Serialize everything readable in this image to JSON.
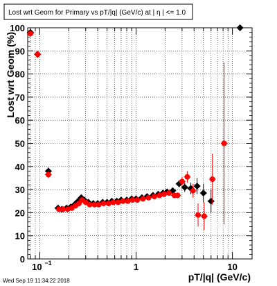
{
  "timestamp": "Wed Sep 19 11:34:22 2018",
  "chart_data": {
    "type": "scatter",
    "title": "Lost wrt Geom for Primary vs pT/|q| (GeV/c) at |   η | <= 1.0",
    "xlabel": "pT/|q| (GeV/c)",
    "ylabel": "Lost wrt Geom (%)",
    "xscale": "log",
    "xlim": [
      0.075,
      16
    ],
    "ylim": [
      0,
      100
    ],
    "grid": true,
    "x_ticks": [
      {
        "value": 0.1,
        "base": "10",
        "exp": "−1"
      },
      {
        "value": 1,
        "base": "1",
        "exp": ""
      },
      {
        "value": 10,
        "base": "10",
        "exp": ""
      }
    ],
    "y_ticks": [
      0,
      10,
      20,
      30,
      40,
      50,
      60,
      70,
      80,
      90,
      100
    ],
    "series": [
      {
        "color": "#000000",
        "marker": "diamond",
        "points": [
          {
            "x": 0.08,
            "y": 98,
            "ex": 0.002,
            "ey": 1
          },
          {
            "x": 0.095,
            "y": 88.5,
            "ex": 0.003,
            "ey": 1.5
          },
          {
            "x": 0.123,
            "y": 38,
            "ex": 0.004,
            "ey": 1.5
          },
          {
            "x": 0.155,
            "y": 22,
            "ex": 0.003,
            "ey": 0.6
          },
          {
            "x": 0.17,
            "y": 21.5,
            "ex": 0.003,
            "ey": 0.6
          },
          {
            "x": 0.19,
            "y": 22,
            "ex": 0.003,
            "ey": 0.6
          },
          {
            "x": 0.21,
            "y": 22.5,
            "ex": 0.003,
            "ey": 0.6
          },
          {
            "x": 0.23,
            "y": 23.5,
            "ex": 0.003,
            "ey": 0.6
          },
          {
            "x": 0.25,
            "y": 25,
            "ex": 0.003,
            "ey": 0.6
          },
          {
            "x": 0.27,
            "y": 26.5,
            "ex": 0.003,
            "ey": 0.6
          },
          {
            "x": 0.29,
            "y": 25.5,
            "ex": 0.003,
            "ey": 0.6
          },
          {
            "x": 0.32,
            "y": 24.5,
            "ex": 0.003,
            "ey": 0.6
          },
          {
            "x": 0.36,
            "y": 24,
            "ex": 0.003,
            "ey": 0.6
          },
          {
            "x": 0.4,
            "y": 24,
            "ex": 0.003,
            "ey": 0.6
          },
          {
            "x": 0.45,
            "y": 24.5,
            "ex": 0.003,
            "ey": 0.6
          },
          {
            "x": 0.5,
            "y": 24.5,
            "ex": 0.003,
            "ey": 0.6
          },
          {
            "x": 0.56,
            "y": 25,
            "ex": 0.003,
            "ey": 0.6
          },
          {
            "x": 0.63,
            "y": 25,
            "ex": 0.003,
            "ey": 0.6
          },
          {
            "x": 0.7,
            "y": 25.5,
            "ex": 0.003,
            "ey": 0.6
          },
          {
            "x": 0.8,
            "y": 25.5,
            "ex": 0.003,
            "ey": 0.6
          },
          {
            "x": 0.9,
            "y": 26,
            "ex": 0.003,
            "ey": 0.6
          },
          {
            "x": 1.0,
            "y": 26,
            "ex": 0.003,
            "ey": 0.6
          },
          {
            "x": 1.15,
            "y": 26.5,
            "ex": 0.003,
            "ey": 0.6
          },
          {
            "x": 1.3,
            "y": 27,
            "ex": 0.003,
            "ey": 0.6
          },
          {
            "x": 1.5,
            "y": 27.5,
            "ex": 0.003,
            "ey": 0.6
          },
          {
            "x": 1.7,
            "y": 28,
            "ex": 0.003,
            "ey": 0.7
          },
          {
            "x": 1.9,
            "y": 28.5,
            "ex": 0.003,
            "ey": 0.7
          },
          {
            "x": 2.1,
            "y": 29,
            "ex": 0.003,
            "ey": 0.8
          },
          {
            "x": 2.4,
            "y": 29.5,
            "ex": 0.003,
            "ey": 1.0
          },
          {
            "x": 2.8,
            "y": 32.5,
            "ex": 0.003,
            "ey": 1.5
          },
          {
            "x": 3.2,
            "y": 31,
            "ex": 0.003,
            "ey": 2.0
          },
          {
            "x": 3.7,
            "y": 30.5,
            "ex": 0.003,
            "ey": 2.5
          },
          {
            "x": 4.3,
            "y": 31.5,
            "ex": 0.003,
            "ey": 3.5
          },
          {
            "x": 5.0,
            "y": 28.5,
            "ex": 0.003,
            "ey": 4.0
          },
          {
            "x": 6.0,
            "y": 25,
            "ex": 0.003,
            "ey": 5.0
          },
          {
            "x": 12,
            "y": 100,
            "ex": 0.003,
            "ey": 0.5
          }
        ]
      },
      {
        "color": "#ff0000",
        "marker": "circle",
        "points": [
          {
            "x": 0.08,
            "y": 97.5,
            "ex": 0.002,
            "ey": 1
          },
          {
            "x": 0.095,
            "y": 88.5,
            "ex": 0.003,
            "ey": 1.5
          },
          {
            "x": 0.123,
            "y": 36.5,
            "ex": 0.004,
            "ey": 1.5
          },
          {
            "x": 0.158,
            "y": 21.5,
            "ex": 0.003,
            "ey": 0.6
          },
          {
            "x": 0.175,
            "y": 21.5,
            "ex": 0.003,
            "ey": 0.6
          },
          {
            "x": 0.195,
            "y": 21.5,
            "ex": 0.003,
            "ey": 0.6
          },
          {
            "x": 0.215,
            "y": 22,
            "ex": 0.003,
            "ey": 0.6
          },
          {
            "x": 0.235,
            "y": 23,
            "ex": 0.003,
            "ey": 0.6
          },
          {
            "x": 0.255,
            "y": 24,
            "ex": 0.003,
            "ey": 0.6
          },
          {
            "x": 0.275,
            "y": 25.5,
            "ex": 0.003,
            "ey": 0.6
          },
          {
            "x": 0.3,
            "y": 24.5,
            "ex": 0.003,
            "ey": 0.6
          },
          {
            "x": 0.33,
            "y": 23.5,
            "ex": 0.003,
            "ey": 0.6
          },
          {
            "x": 0.37,
            "y": 23.5,
            "ex": 0.003,
            "ey": 0.6
          },
          {
            "x": 0.41,
            "y": 23.5,
            "ex": 0.003,
            "ey": 0.6
          },
          {
            "x": 0.46,
            "y": 24,
            "ex": 0.003,
            "ey": 0.6
          },
          {
            "x": 0.52,
            "y": 24,
            "ex": 0.003,
            "ey": 0.6
          },
          {
            "x": 0.58,
            "y": 24.5,
            "ex": 0.003,
            "ey": 0.6
          },
          {
            "x": 0.65,
            "y": 24.5,
            "ex": 0.003,
            "ey": 0.6
          },
          {
            "x": 0.73,
            "y": 25,
            "ex": 0.003,
            "ey": 0.6
          },
          {
            "x": 0.82,
            "y": 25,
            "ex": 0.003,
            "ey": 0.6
          },
          {
            "x": 0.92,
            "y": 25.5,
            "ex": 0.003,
            "ey": 0.6
          },
          {
            "x": 1.03,
            "y": 25.5,
            "ex": 0.003,
            "ey": 0.6
          },
          {
            "x": 1.18,
            "y": 26,
            "ex": 0.003,
            "ey": 0.6
          },
          {
            "x": 1.35,
            "y": 26.5,
            "ex": 0.003,
            "ey": 0.6
          },
          {
            "x": 1.55,
            "y": 27,
            "ex": 0.003,
            "ey": 0.6
          },
          {
            "x": 1.75,
            "y": 27.5,
            "ex": 0.003,
            "ey": 0.7
          },
          {
            "x": 1.95,
            "y": 28,
            "ex": 0.003,
            "ey": 0.7
          },
          {
            "x": 2.2,
            "y": 28.5,
            "ex": 0.003,
            "ey": 0.8
          },
          {
            "x": 2.5,
            "y": 27.5,
            "ex": 0.003,
            "ey": 1.0
          },
          {
            "x": 2.7,
            "y": 27.5,
            "ex": 0.003,
            "ey": 1.2
          },
          {
            "x": 3.0,
            "y": 33.5,
            "ex": 0.003,
            "ey": 2.0
          },
          {
            "x": 3.4,
            "y": 35.5,
            "ex": 0.003,
            "ey": 2.5
          },
          {
            "x": 3.9,
            "y": 29.5,
            "ex": 0.003,
            "ey": 3.0
          },
          {
            "x": 4.4,
            "y": 19,
            "ex": 0.003,
            "ey": 5.0
          },
          {
            "x": 5.1,
            "y": 18.5,
            "ex": 0.003,
            "ey": 6.0
          },
          {
            "x": 6.2,
            "y": 34.5,
            "ex": 0.003,
            "ey": 11.0
          },
          {
            "x": 8.2,
            "y": 50,
            "ex": 0.6,
            "ey": 35.0
          }
        ]
      }
    ]
  }
}
